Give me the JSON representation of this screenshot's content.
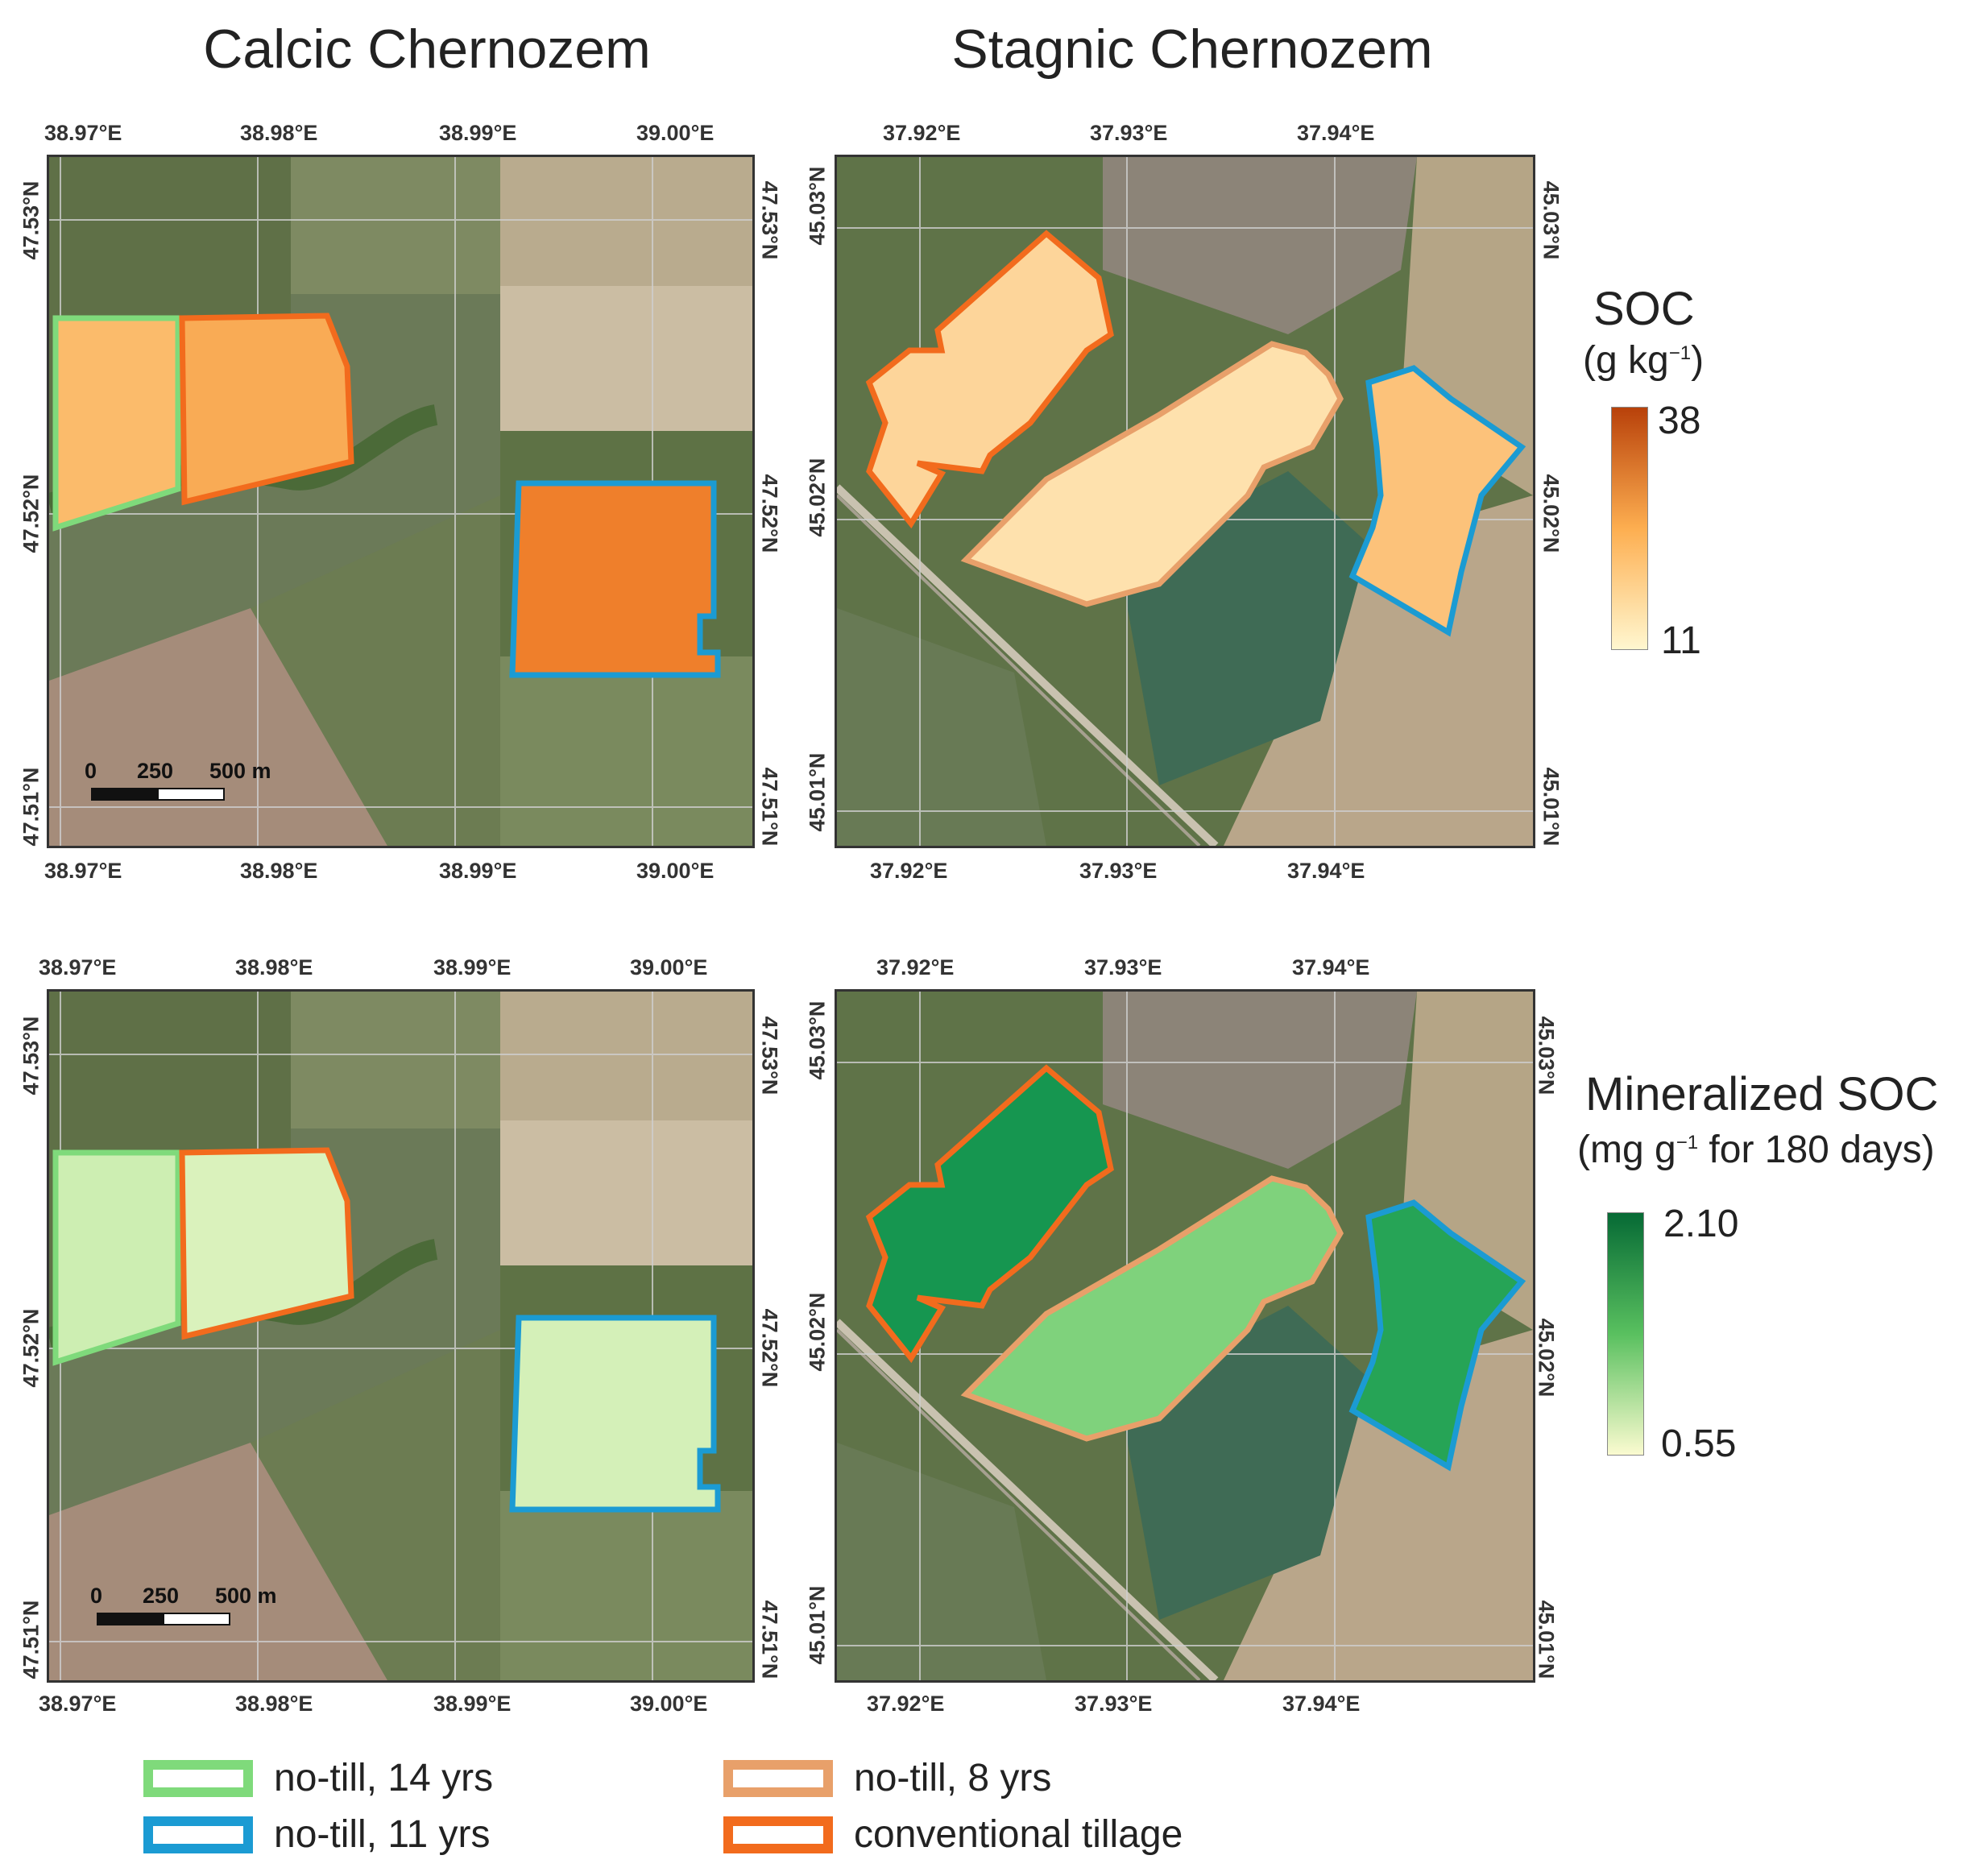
{
  "columns": {
    "left_title": "Calcic Chernozem",
    "right_title": "Stagnic Chernozem"
  },
  "calcic": {
    "x_ticks": [
      "38.97°E",
      "38.98°E",
      "38.99°E",
      "39.00°E"
    ],
    "y_ticks": [
      "47.53°N",
      "47.52°N",
      "47.51°N"
    ]
  },
  "stagnic": {
    "x_ticks": [
      "37.92°E",
      "37.93°E",
      "37.94°E"
    ],
    "y_ticks": [
      "45.03°N",
      "45.02°N",
      "45.01°N"
    ]
  },
  "scale_bar": {
    "l0": "0",
    "l1": "250",
    "l2": "500 m"
  },
  "colorbars": {
    "soc": {
      "title": "SOC",
      "unit_prefix": "(g kg",
      "unit_sup": "−1",
      "unit_suffix": ")",
      "max": "38",
      "min": "11",
      "color_min": "#fff7d0",
      "color_mid": "#fdae50",
      "color_max": "#b8410a"
    },
    "min": {
      "title": "Mineralized SOC",
      "unit_prefix": "(mg g",
      "unit_sup": "−1",
      "unit_suffix": " for 180 days)",
      "max": "2.10",
      "min": "0.55",
      "color_min": "#fbfbd0",
      "color_mid": "#59c05f",
      "color_max": "#066a35"
    }
  },
  "legend": [
    {
      "label": "no-till, 14 yrs",
      "color": "#7fda7b"
    },
    {
      "label": "no-till, 11 yrs",
      "color": "#1b9bd3"
    },
    {
      "label": "no-till, 8 yrs",
      "color": "#e8a06a"
    },
    {
      "label": "conventional tillage",
      "color": "#f26b1d"
    }
  ],
  "fields": {
    "soc": {
      "calcic_nt14": "#fbbb6b",
      "calcic_ct": "#f9ab55",
      "calcic_nt11": "#ef7f2b",
      "stagnic_ct": "#fdd59a",
      "stagnic_nt8": "#fee1ad",
      "stagnic_nt11": "#fcc27a"
    },
    "min": {
      "calcic_nt14": "#cdeeb2",
      "calcic_ct": "#daf2bc",
      "calcic_nt11": "#d4f0b8",
      "stagnic_ct": "#169650",
      "stagnic_nt8": "#7fd27c",
      "stagnic_nt11": "#26a456"
    }
  }
}
